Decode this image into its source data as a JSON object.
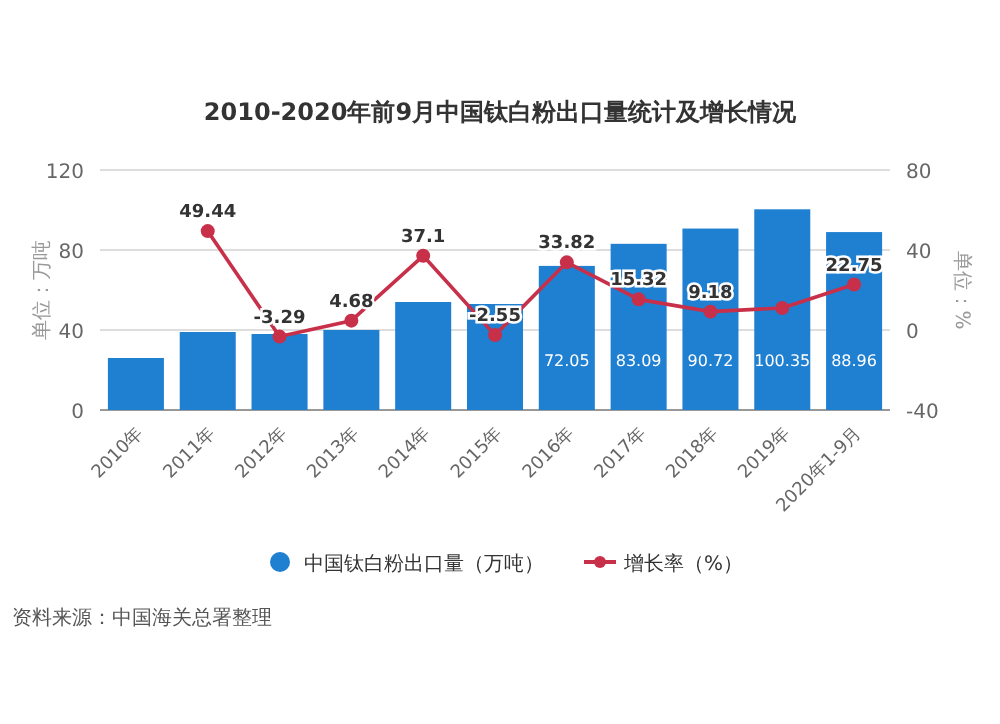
{
  "chart_data": {
    "type": "bar",
    "title": "2010-2020年前9月中国钛白粉出口量统计及增长情况",
    "ylabel": "单位：万吨",
    "y2label": "单位：%",
    "categories": [
      "2010年",
      "2011年",
      "2012年",
      "2013年",
      "2014年",
      "2015年",
      "2016年",
      "2017年",
      "2018年",
      "2019年",
      "2020年1-9月"
    ],
    "series": [
      {
        "name": "中国钛白粉出口量（万吨）",
        "color": "#1f7fd1",
        "values": [
          26,
          39,
          38,
          40,
          54,
          53,
          72.05,
          83.09,
          90.72,
          100.35,
          88.96
        ],
        "value_labels": [
          null,
          null,
          null,
          null,
          null,
          null,
          "72.05",
          "83.09",
          "90.72",
          "100.35",
          "88.96"
        ]
      },
      {
        "name": "增长率（%）",
        "type": "line",
        "axis": "y2",
        "color": "#c8304a",
        "marker": "circle",
        "values": [
          null,
          49.44,
          -3.29,
          4.68,
          37.1,
          -2.55,
          33.82,
          15.32,
          9.18,
          11,
          22.75
        ],
        "value_labels": [
          null,
          "49.44",
          "-3.29",
          "4.68",
          "37.1",
          "-2.55",
          "33.82",
          "15.32",
          "9.18",
          null,
          "22.75"
        ]
      }
    ],
    "ylim": [
      0,
      120
    ],
    "yticks": [
      0,
      40,
      80,
      120
    ],
    "y2lim": [
      -40,
      80
    ],
    "y2ticks": [
      -40,
      0,
      40,
      80
    ],
    "grid": "y",
    "legend": "bottom",
    "annotations": [
      "资料来源：中国海关总署整理"
    ]
  }
}
